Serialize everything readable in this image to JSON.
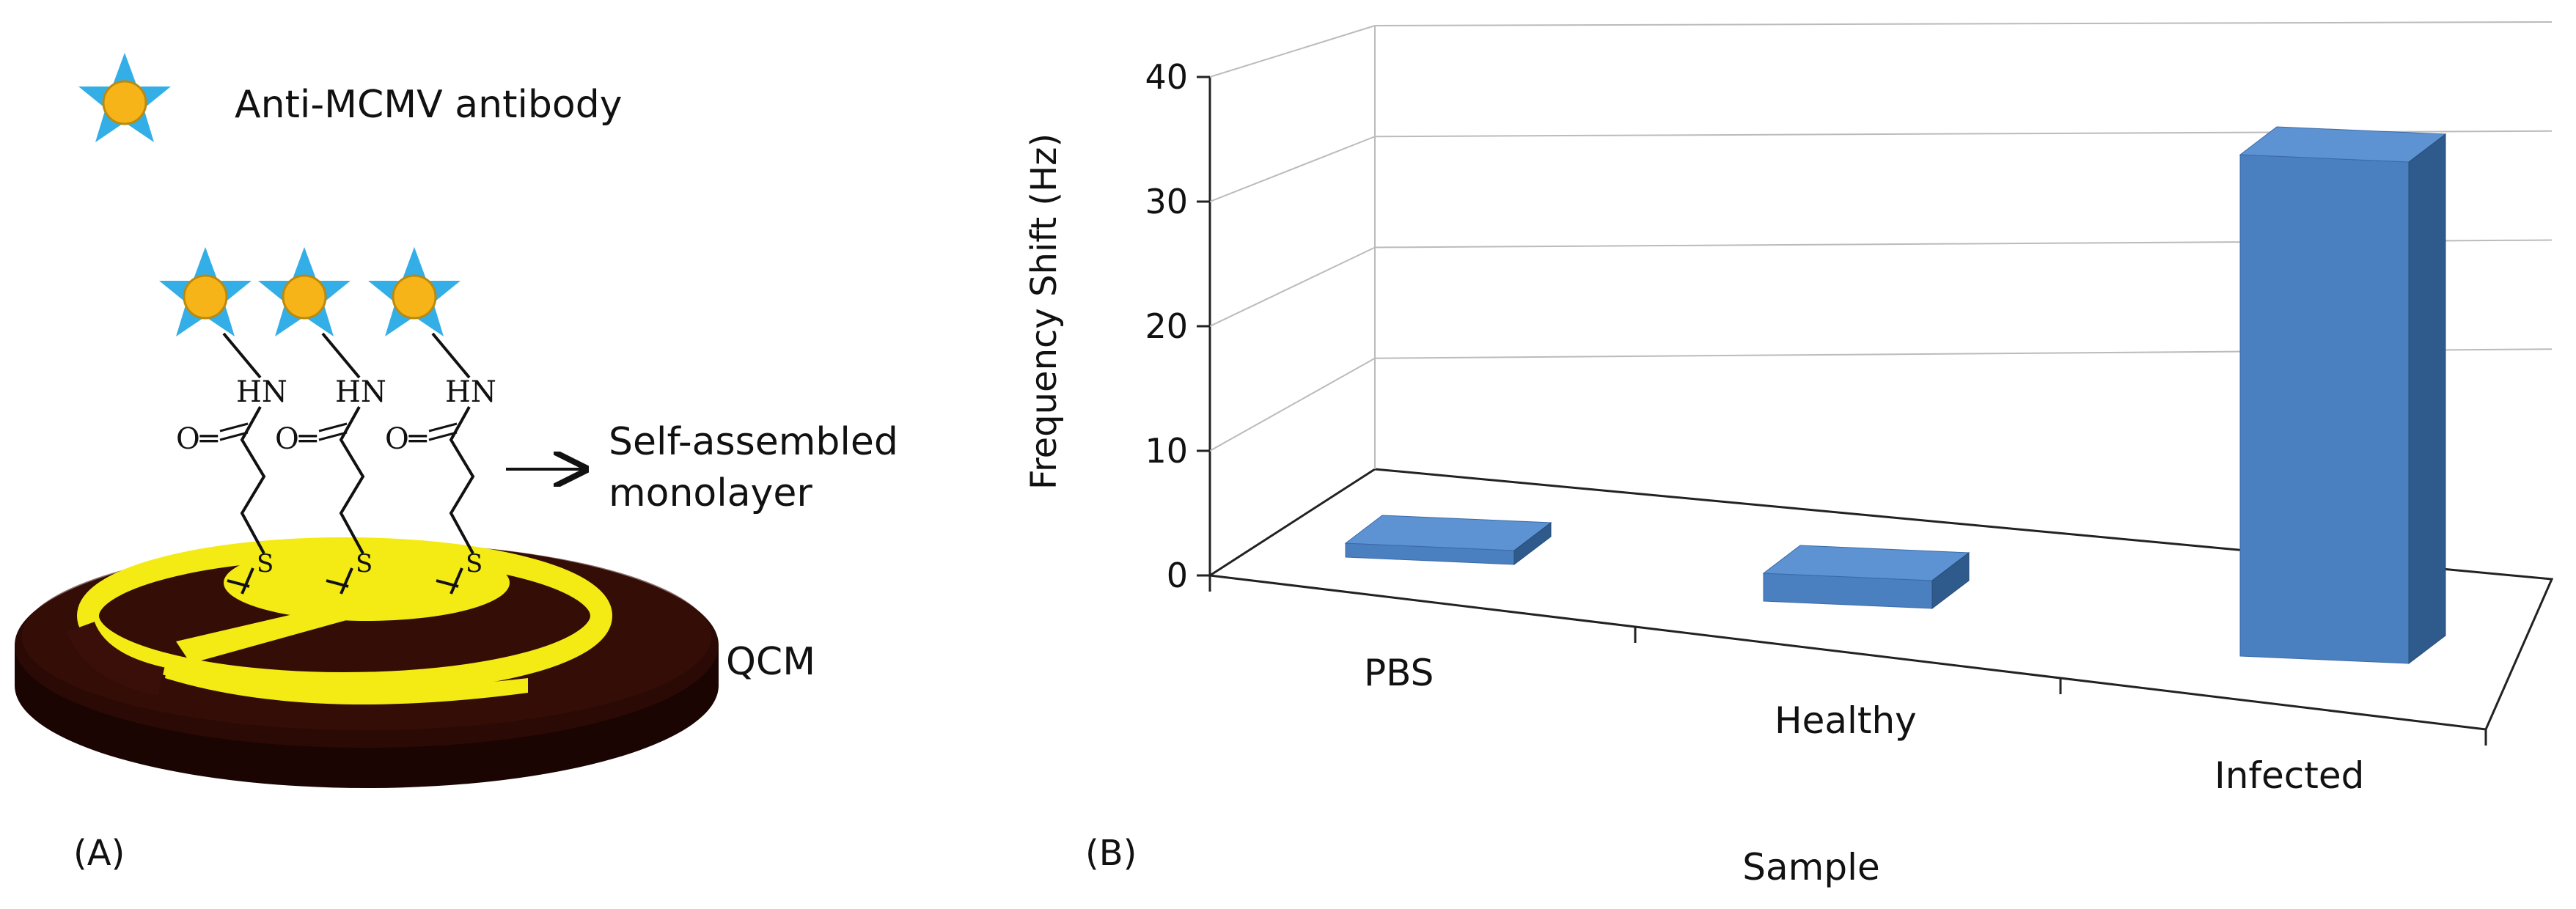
{
  "panel_a": {
    "panel_label": "(A)",
    "legend_text": "Anti-MCMV antibody",
    "sam_label_line1": "Self-assembled",
    "sam_label_line2": "monolayer",
    "qcm_label": "QCM",
    "chem": {
      "hn": "HN",
      "carbonyl": "O═",
      "sulfur": "S"
    },
    "icons": [
      "antibody-star-icon",
      "arrow-right-icon",
      "qcm-crystal-icon"
    ],
    "colors": {
      "star": "#33aee6",
      "star_core": "#f6b418",
      "gold_electrode": "#f4ea14",
      "crystal": "#2b0a06"
    }
  },
  "panel_b": {
    "panel_label": "(B)"
  },
  "chart_data": {
    "type": "bar",
    "style": "3d-column",
    "title": "",
    "xlabel": "Sample",
    "ylabel": "Frequency Shift (Hz)",
    "categories": [
      "PBS",
      "Healthy",
      "Infected"
    ],
    "values": [
      1,
      2,
      36
    ],
    "ylim": [
      0,
      40
    ],
    "yticks": [
      "0",
      "10",
      "20",
      "30",
      "40"
    ],
    "grid": true,
    "legend": "none",
    "bar_color": "#4a7fc0"
  }
}
